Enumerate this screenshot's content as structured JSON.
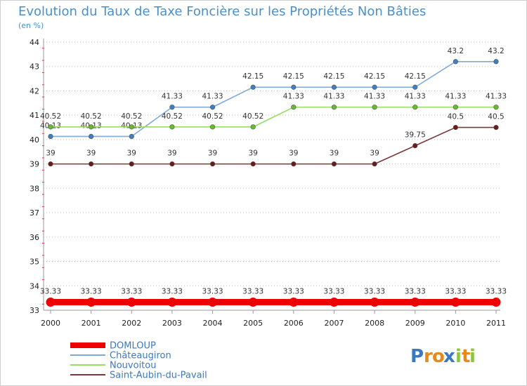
{
  "chart_data": {
    "type": "line",
    "title": "Evolution du Taux de Taxe Foncière sur les Propriétés Non Bâties",
    "subtitle": "(en %)",
    "xlabel": "",
    "ylabel": "",
    "x": [
      "2000",
      "2001",
      "2002",
      "2003",
      "2004",
      "2005",
      "2006",
      "2007",
      "2008",
      "2009",
      "2010",
      "2011"
    ],
    "ylim": [
      33,
      44
    ],
    "yticks": [
      33,
      34,
      35,
      36,
      37,
      38,
      39,
      40,
      41,
      42,
      43,
      44
    ],
    "grid": "horizontal-dotted",
    "legend_position": "bottom-left",
    "series": [
      {
        "name": "DOMLOUP",
        "color": "#ee0000",
        "values": [
          33.33,
          33.33,
          33.33,
          33.33,
          33.33,
          33.33,
          33.33,
          33.33,
          33.33,
          33.33,
          33.33,
          33.33
        ],
        "labels": [
          "33.33",
          "33.33",
          "33.33",
          "33.33",
          "33.33",
          "33.33",
          "33.33",
          "33.33",
          "33.33",
          "33.33",
          "33.33",
          "33.33"
        ]
      },
      {
        "name": "Châteaugiron",
        "color": "#7fa9d6",
        "point_color": "#3f7fbf",
        "values": [
          40.13,
          40.13,
          40.13,
          41.33,
          41.33,
          42.15,
          42.15,
          42.15,
          42.15,
          42.15,
          43.2,
          43.2
        ],
        "labels": [
          "40.13",
          "40.13",
          "40.13",
          "41.33",
          "41.33",
          "42.15",
          "42.15",
          "42.15",
          "42.15",
          "42.15",
          "43.2",
          "43.2"
        ]
      },
      {
        "name": "Nouvoitou",
        "color": "#99dd66",
        "point_color": "#66bb33",
        "values": [
          40.52,
          40.52,
          40.52,
          40.52,
          40.52,
          40.52,
          41.33,
          41.33,
          41.33,
          41.33,
          41.33,
          41.33
        ],
        "labels": [
          "40.52",
          "40.52",
          "40.52",
          "40.52",
          "40.52",
          "40.52",
          "41.33",
          "41.33",
          "41.33",
          "41.33",
          "41.33",
          "41.33"
        ]
      },
      {
        "name": "Saint-Aubin-du-Pavail",
        "color": "#7a3a3a",
        "point_color": "#6a1a1a",
        "values": [
          39,
          39,
          39,
          39,
          39,
          39,
          39,
          39,
          39,
          39.75,
          40.5,
          40.5
        ],
        "labels": [
          "39",
          "39",
          "39",
          "39",
          "39",
          "39",
          "39",
          "39",
          "39",
          "39.75",
          "40.5",
          "40.5"
        ]
      }
    ]
  },
  "logo": {
    "text": "Proxiti",
    "letters": [
      "P",
      "r",
      "o",
      "x",
      "i",
      "t",
      "i"
    ],
    "letter_colors": [
      "#3a78c2",
      "#e88a1a",
      "#e88a1a",
      "#3a78c2",
      "#8cc63f",
      "#e88a1a",
      "#8cc63f"
    ]
  }
}
